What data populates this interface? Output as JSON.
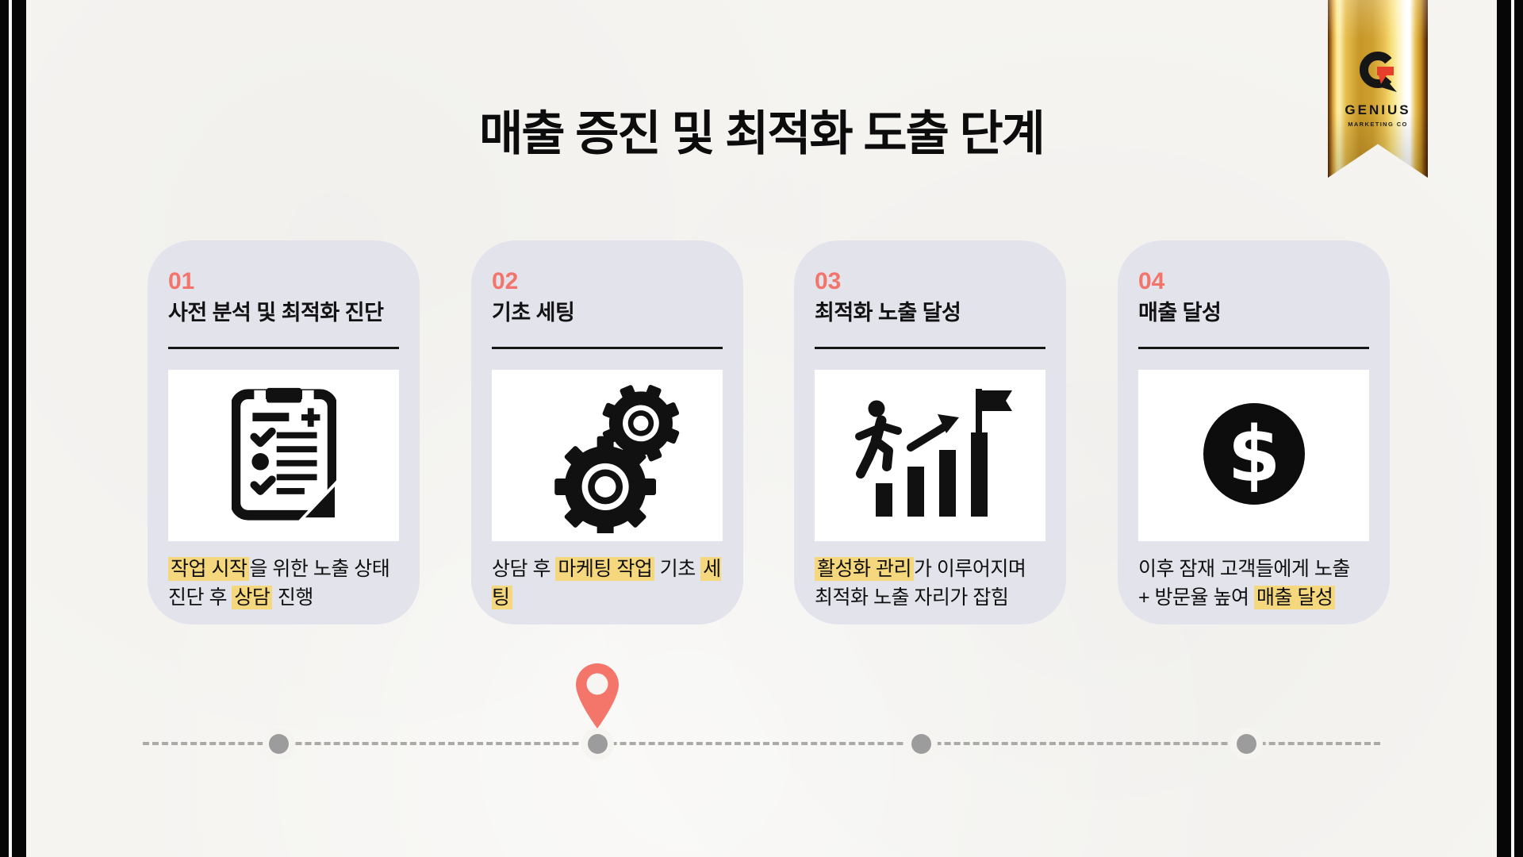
{
  "title": "매출 증진 및 최적화 도출 단계",
  "badge": {
    "logo_icon": "genius-g-logo",
    "brand": "GENIUS",
    "subtitle": "MARKETING CO"
  },
  "steps": [
    {
      "number": "01",
      "heading": "사전 분석 및 최적화 진단",
      "icon": "clipboard-checklist-icon",
      "description": [
        {
          "text": "작업 시작",
          "highlight": true
        },
        {
          "text": "을 위한 노출 상태",
          "highlight": false
        },
        {
          "break": true
        },
        {
          "text": "진단 후 ",
          "highlight": false
        },
        {
          "text": "상담",
          "highlight": true
        },
        {
          "text": " 진행",
          "highlight": false
        }
      ]
    },
    {
      "number": "02",
      "heading": "기초 세팅",
      "icon": "gears-icon",
      "description": [
        {
          "text": "상담 후 ",
          "highlight": false
        },
        {
          "text": "마케팅 작업",
          "highlight": true
        },
        {
          "text": " 기초 ",
          "highlight": false
        },
        {
          "text": "세팅",
          "highlight": true
        }
      ]
    },
    {
      "number": "03",
      "heading": "최적화 노출 달성",
      "icon": "growth-chart-climb-icon",
      "description": [
        {
          "text": "활성화 관리",
          "highlight": true
        },
        {
          "text": "가 이루어지며",
          "highlight": false
        },
        {
          "break": true
        },
        {
          "text": "최적화 노출 자리가 잡힘",
          "highlight": false
        }
      ]
    },
    {
      "number": "04",
      "heading": "매출 달성",
      "icon": "dollar-coin-icon",
      "icon_glyph": "$",
      "description": [
        {
          "text": "이후 잠재 고객들에게 노출",
          "highlight": false
        },
        {
          "break": true
        },
        {
          "text": "+ 방문율 높여 ",
          "highlight": false
        },
        {
          "text": "매출 달성",
          "highlight": true
        }
      ]
    }
  ],
  "timeline": {
    "dot_count": 4,
    "active_step_index": 1,
    "pin_icon": "location-pin-icon"
  },
  "colors": {
    "accent_coral": "#F3746A",
    "highlight_yellow": "#F5D77D",
    "card_background": "#E3E3EC",
    "ribbon_gold": "#D9A43C",
    "ink": "#111111",
    "dot_gray": "#9C9C9C",
    "background_paper": "#F5F4F1"
  }
}
